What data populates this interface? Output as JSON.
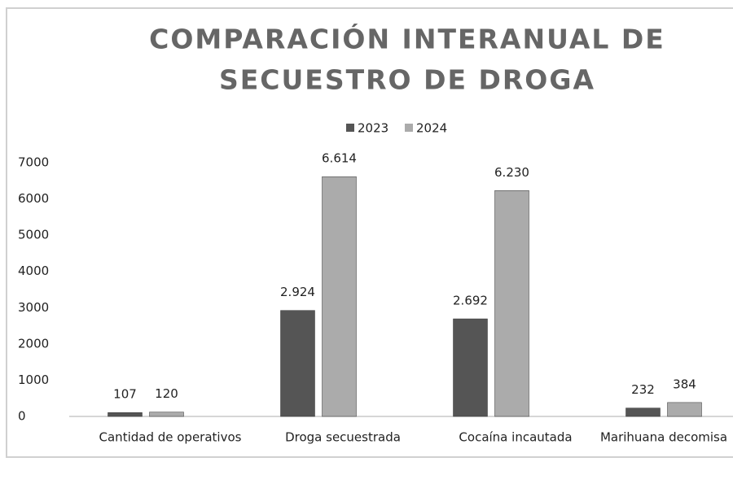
{
  "chart_data": {
    "type": "bar",
    "title": [
      "COMPARACIÓN INTERANUAL DE",
      "SECUESTRO DE DROGA"
    ],
    "categories": [
      "Cantidad de operativos",
      "Droga secuestrada",
      "Cocaína incautada",
      "Marihuana decomisa"
    ],
    "series": [
      {
        "name": "2023",
        "color": "#555555",
        "values": [
          107,
          2924,
          2692,
          232
        ],
        "value_labels": [
          "107",
          "2.924",
          "2.692",
          "232"
        ]
      },
      {
        "name": "2024",
        "color": "#ababab",
        "values": [
          120,
          6614,
          6230,
          384
        ],
        "value_labels": [
          "120",
          "6.614",
          "6.230",
          "384"
        ]
      }
    ],
    "ylim": [
      0,
      7000
    ],
    "yticks": [
      0,
      1000,
      2000,
      3000,
      4000,
      5000,
      6000,
      7000
    ],
    "grid": false,
    "legend": "top"
  }
}
